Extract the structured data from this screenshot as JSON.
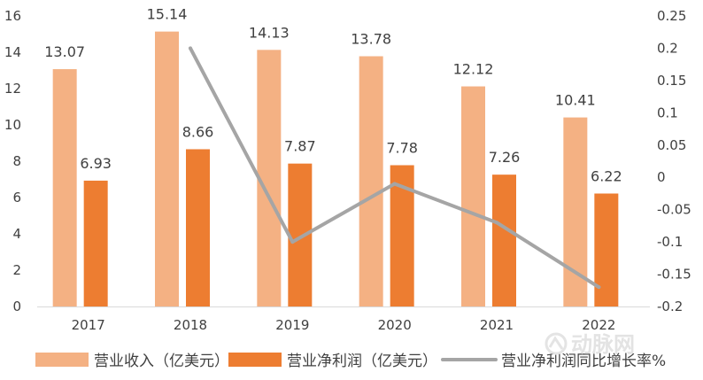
{
  "chart_data": {
    "type": "bar",
    "categories": [
      "2017",
      "2018",
      "2019",
      "2020",
      "2021",
      "2022"
    ],
    "series": [
      {
        "name": "营业收入（亿美元）",
        "kind": "bar",
        "axis": "left",
        "color": "#f4b183",
        "values": [
          13.07,
          15.14,
          14.13,
          13.78,
          12.12,
          10.41
        ]
      },
      {
        "name": "营业净利润（亿美元）",
        "kind": "bar",
        "axis": "left",
        "color": "#ed7d31",
        "values": [
          6.93,
          8.66,
          7.87,
          7.78,
          7.26,
          6.22
        ]
      },
      {
        "name": "营业净利润同比增长率%",
        "kind": "line",
        "axis": "right",
        "color": "#a5a5a5",
        "values": [
          null,
          0.2,
          -0.1,
          -0.01,
          -0.07,
          -0.17
        ]
      }
    ],
    "y_left": {
      "ylim": [
        0,
        16
      ],
      "ticks": [
        0,
        2,
        4,
        6,
        8,
        10,
        12,
        14,
        16
      ]
    },
    "y_right": {
      "ylim": [
        -0.2,
        0.25
      ],
      "ticks": [
        -0.2,
        -0.15,
        -0.1,
        -0.05,
        0,
        0.05,
        0.1,
        0.15,
        0.2,
        0.25
      ],
      "tick_labels": [
        "-0.2",
        "-0.15",
        "-0.1",
        "-0.05",
        "0",
        "0.05",
        "0.1",
        "0.15",
        "0.2",
        "0.25"
      ]
    },
    "title": "",
    "xlabel": "",
    "ylabel": "",
    "grid": false,
    "legend": "bottom"
  },
  "watermark": {
    "text": "动脉网",
    "icon": "dongmai-logo-icon"
  }
}
